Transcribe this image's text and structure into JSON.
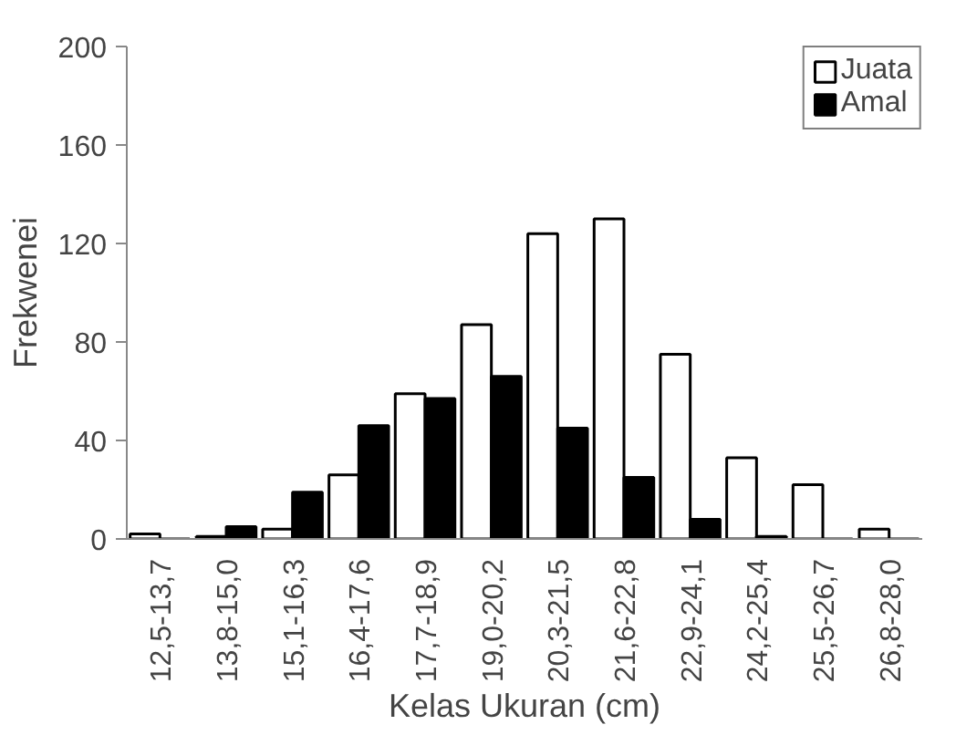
{
  "chart_data": {
    "type": "bar",
    "xlabel": "Kelas Ukuran (cm)",
    "ylabel": "Frekwenei",
    "categories": [
      "12,5-13,7",
      "13,8-15,0",
      "15,1-16,3",
      "16,4-17,6",
      "17,7-18,9",
      "19,0-20,2",
      "20,3-21,5",
      "21,6-22,8",
      "22,9-24,1",
      "24,2-25,4",
      "25,5-26,7",
      "26,8-28,0"
    ],
    "series": [
      {
        "name": "Juata",
        "color": "#ffffff",
        "values": [
          2,
          1,
          4,
          26,
          59,
          87,
          124,
          130,
          75,
          33,
          22,
          4
        ]
      },
      {
        "name": "Amal",
        "color": "#000000",
        "values": [
          0,
          5,
          19,
          46,
          57,
          66,
          45,
          25,
          8,
          1,
          0,
          0
        ]
      }
    ],
    "ylim": [
      0,
      200
    ],
    "yticks": [
      0,
      40,
      80,
      120,
      160,
      200
    ],
    "grid": false,
    "legend": "top right"
  }
}
